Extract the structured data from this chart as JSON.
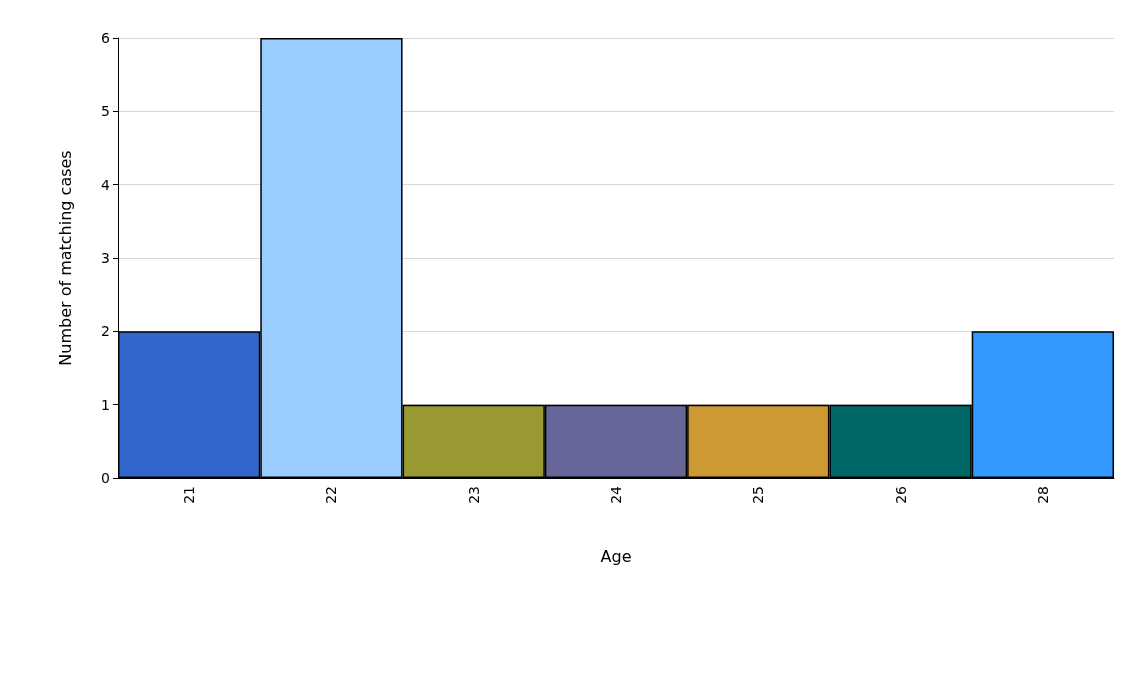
{
  "chart_data": {
    "type": "bar",
    "xlabel": "Age",
    "ylabel": "Number of matching cases",
    "categories": [
      "21",
      "22",
      "23",
      "24",
      "25",
      "26",
      "28"
    ],
    "values": [
      2,
      6,
      1,
      1,
      1,
      1,
      2
    ],
    "colors": [
      "#3366cc",
      "#99ccff",
      "#999933",
      "#666699",
      "#cc9933",
      "#006666",
      "#3399ff"
    ],
    "ylim": [
      0,
      6
    ],
    "yticks": [
      0,
      1,
      2,
      3,
      4,
      5,
      6
    ],
    "grid": "y"
  }
}
